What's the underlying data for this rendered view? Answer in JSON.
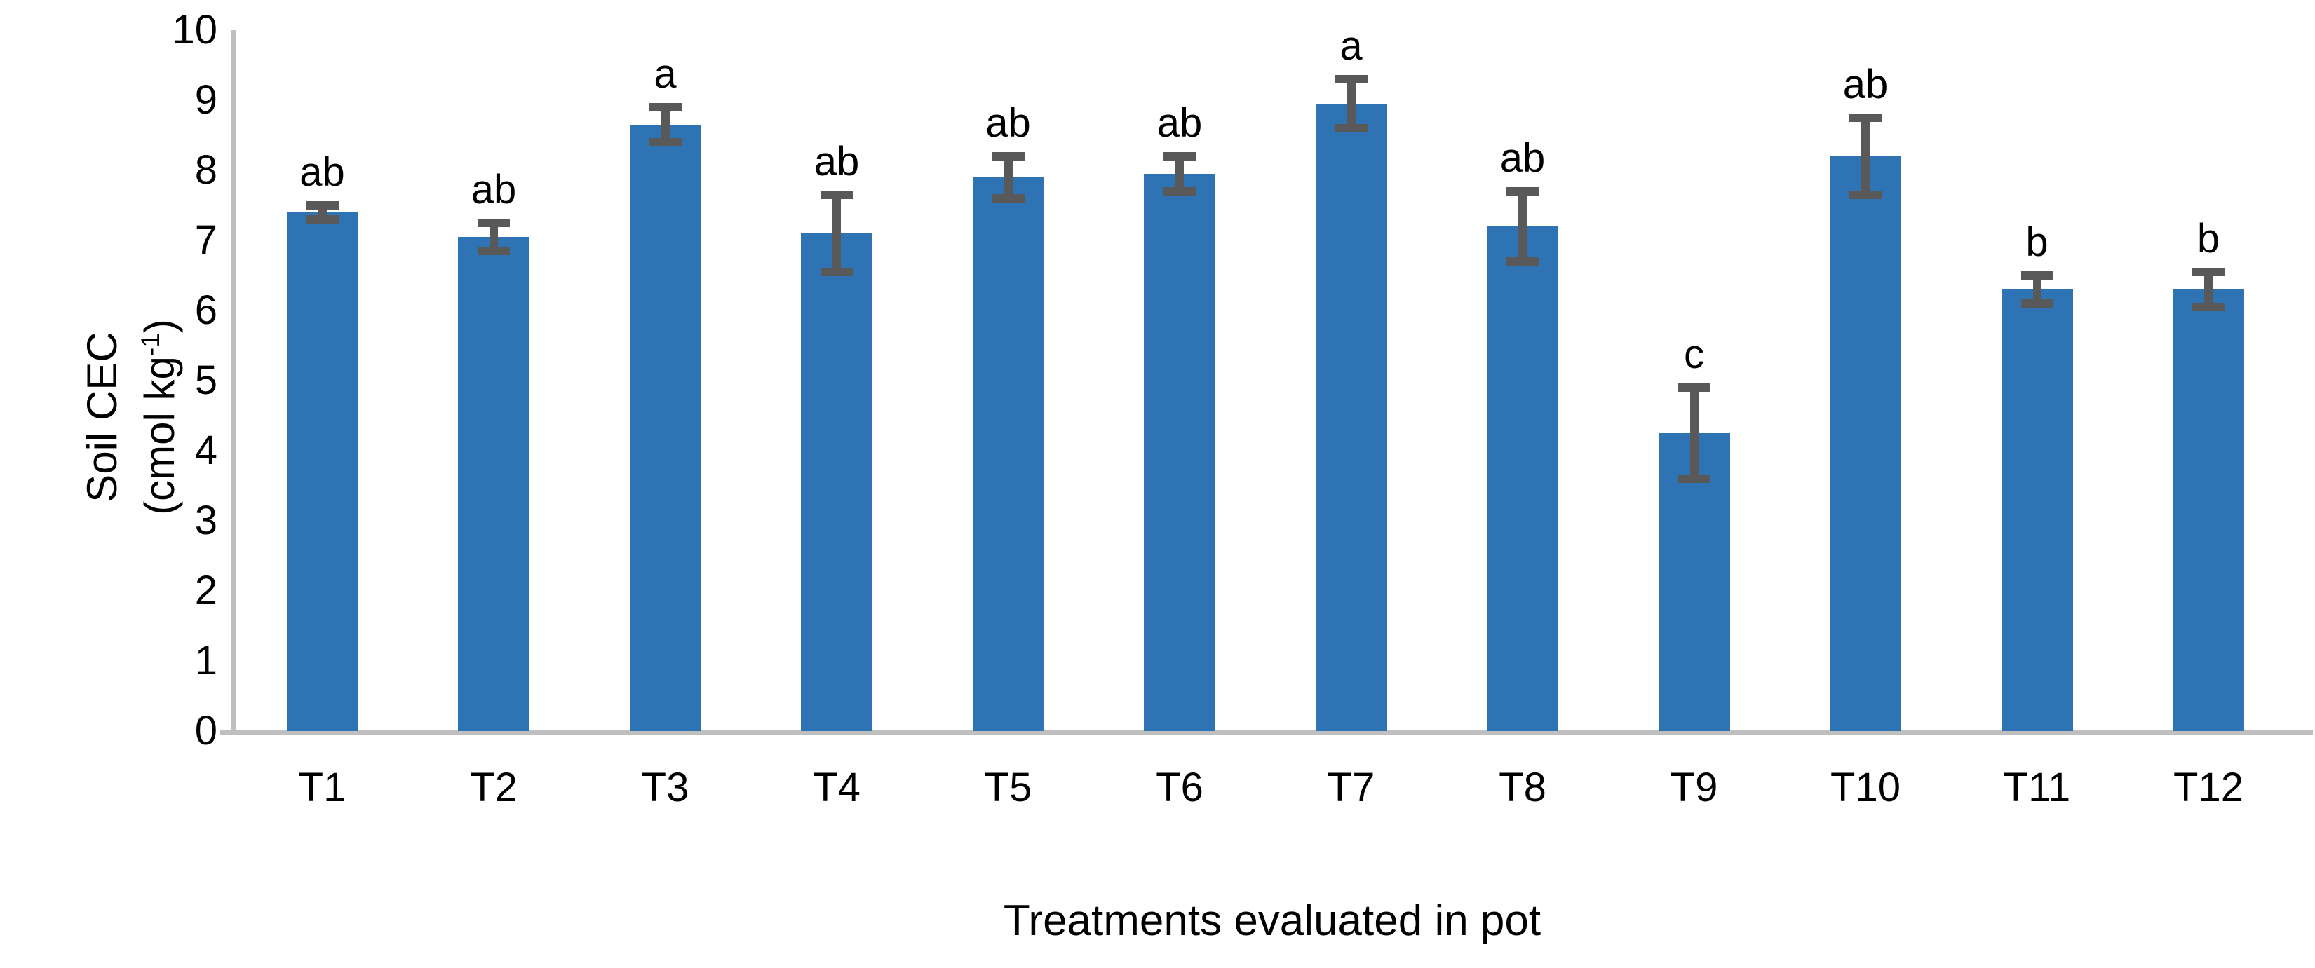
{
  "chart_data": {
    "type": "bar",
    "title": "",
    "categories": [
      "T1",
      "T2",
      "T3",
      "T4",
      "T5",
      "T6",
      "T7",
      "T8",
      "T9",
      "T10",
      "T11",
      "T12"
    ],
    "values": [
      7.4,
      7.05,
      8.65,
      7.1,
      7.9,
      7.95,
      8.95,
      7.2,
      4.25,
      8.2,
      6.3,
      6.3
    ],
    "errors": [
      0.1,
      0.2,
      0.25,
      0.55,
      0.3,
      0.25,
      0.35,
      0.5,
      0.65,
      0.55,
      0.2,
      0.25
    ],
    "sig_letters": [
      "ab",
      "ab",
      "a",
      "ab",
      "ab",
      "ab",
      "a",
      "ab",
      "c",
      "ab",
      "b",
      "b"
    ],
    "xlabel": "Treatments evaluated in pot",
    "ylabel_line1": "Soil CEC",
    "ylabel_unit_pre": "(cmol kg",
    "ylabel_unit_sup": "-1",
    "ylabel_unit_post": ")",
    "yticks": [
      0,
      1,
      2,
      3,
      4,
      5,
      6,
      7,
      8,
      9,
      10
    ],
    "ylim": [
      0,
      10
    ],
    "grid": false,
    "legend": "none",
    "colors": {
      "bar": "#2E74B5",
      "error": "#595959",
      "axis": "#BFBFBF",
      "text": "#000000"
    }
  }
}
